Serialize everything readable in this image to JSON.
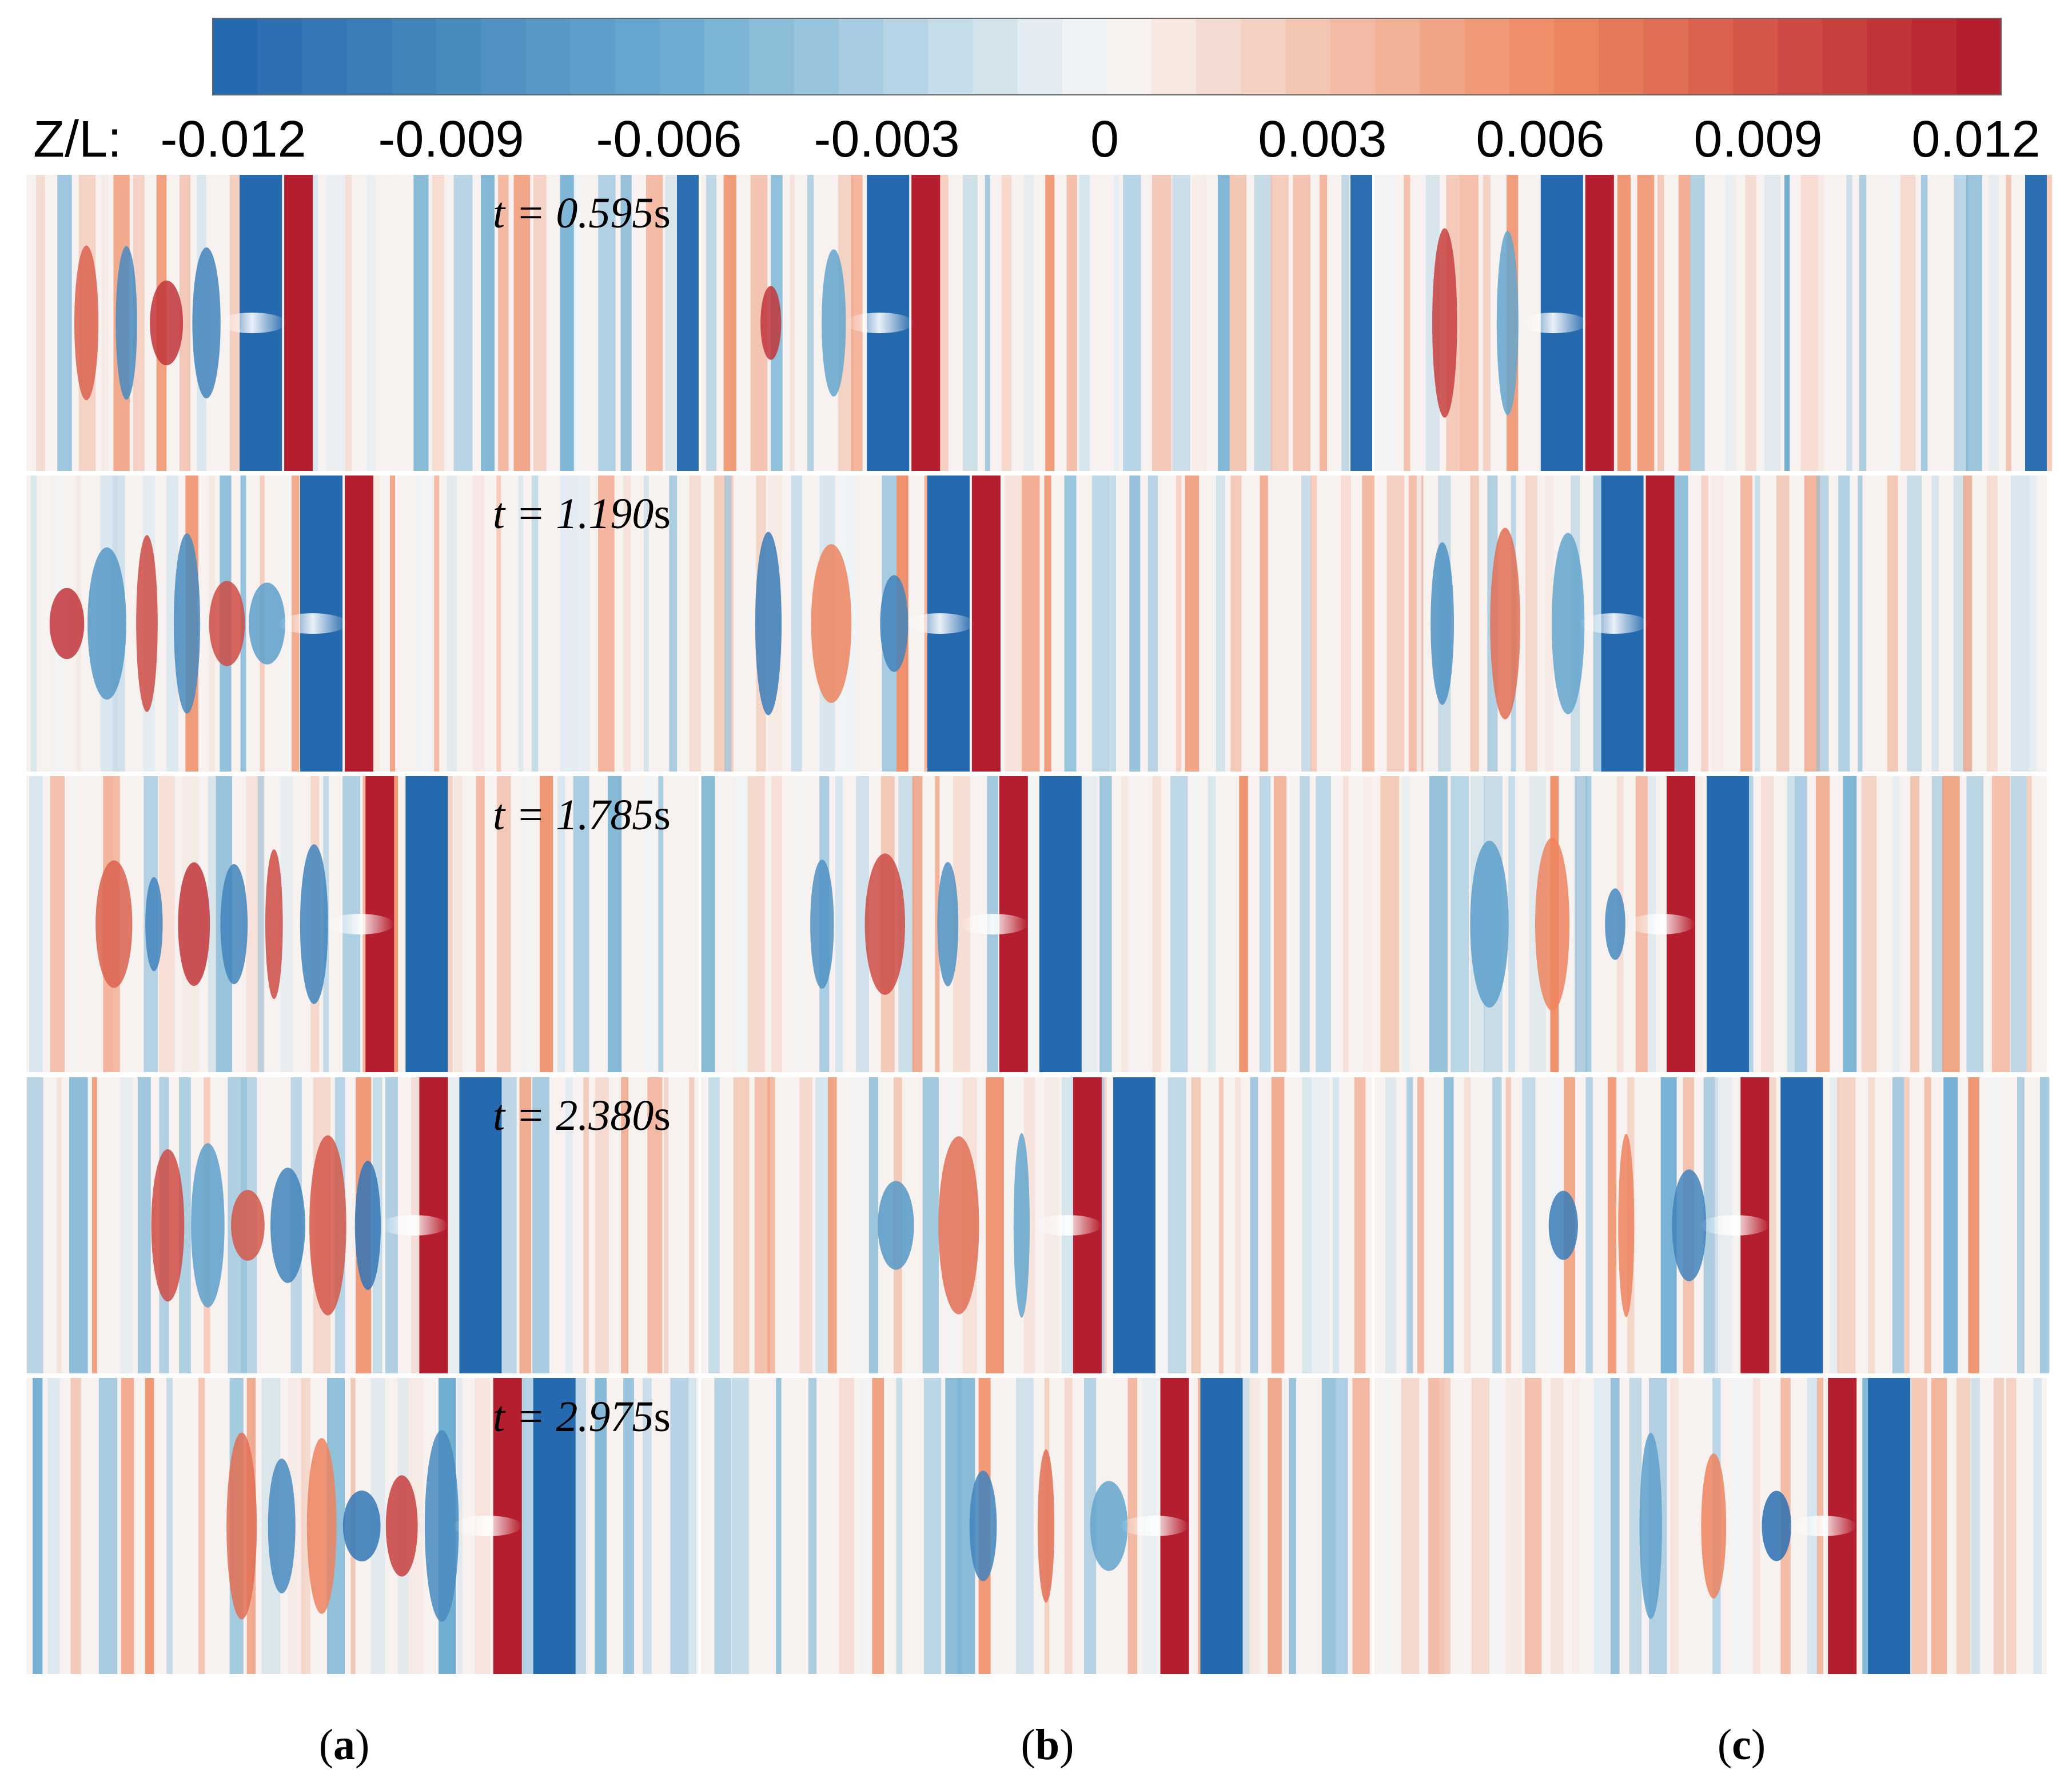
{
  "figure": {
    "colorbar": {
      "variable_label": "Z/L:",
      "min": -0.012,
      "max": 0.012,
      "n_levels": 40,
      "ticks": [
        "-0.012",
        "-0.009",
        "-0.006",
        "-0.003",
        "0",
        "0.003",
        "0.006",
        "0.009",
        "0.012"
      ],
      "colors": {
        "negative": "#2166ac",
        "zero": "#f7f7f7",
        "positive": "#b2182b",
        "mid_negative": "#67a9cf",
        "mid_positive": "#ef8a62"
      }
    },
    "time_prefix": "t = ",
    "time_unit": "s",
    "rows": [
      {
        "time": "0.595"
      },
      {
        "time": "1.190"
      },
      {
        "time": "1.785"
      },
      {
        "time": "2.380"
      },
      {
        "time": "2.975"
      }
    ],
    "panels": [
      {
        "id": "a",
        "prefix": "(",
        "letter": "a",
        "suffix": ")"
      },
      {
        "id": "b",
        "prefix": "(",
        "letter": "b",
        "suffix": ")"
      },
      {
        "id": "c",
        "prefix": "(",
        "letter": "c",
        "suffix": ")"
      }
    ]
  }
}
